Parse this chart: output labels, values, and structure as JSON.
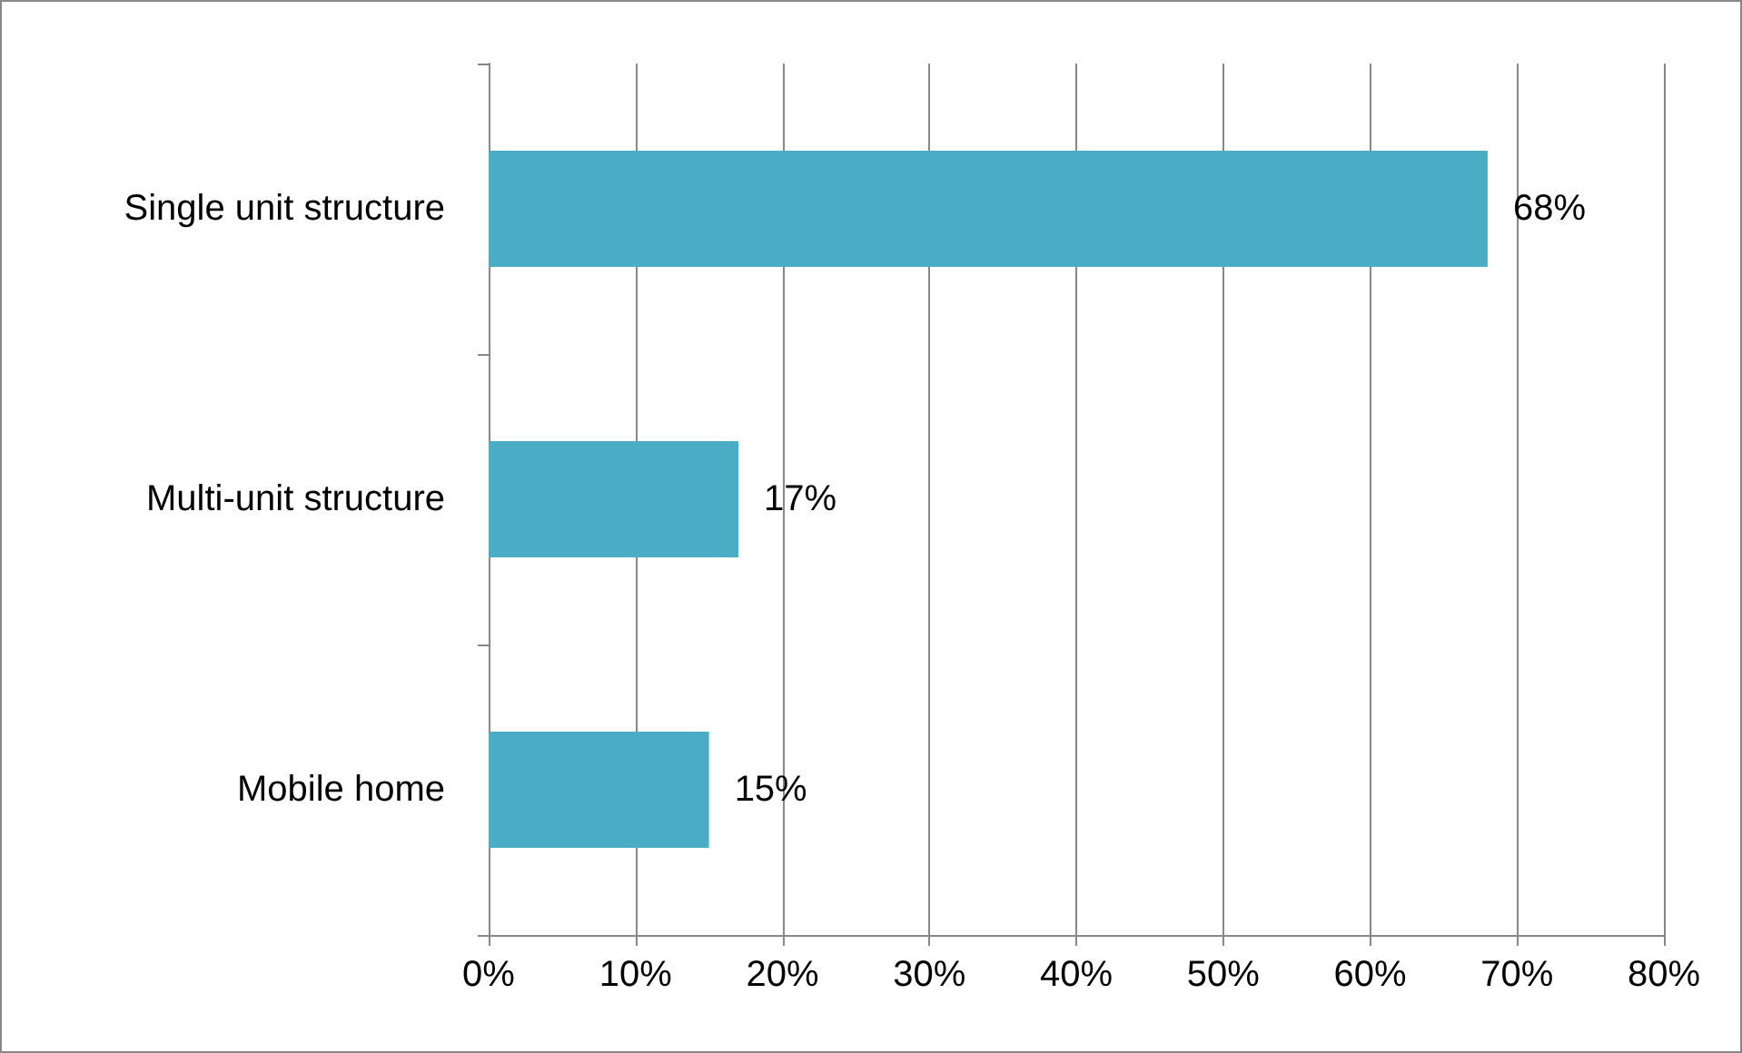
{
  "chart_data": {
    "type": "bar",
    "orientation": "horizontal",
    "categories": [
      "Single unit structure",
      "Multi-unit structure",
      "Mobile home"
    ],
    "values": [
      68,
      17,
      15
    ],
    "color": "#4bacc6",
    "value_labels": [
      "68%",
      "17%",
      "15%"
    ],
    "xlim": [
      0,
      80
    ],
    "xticks": [
      {
        "value": 0,
        "label": "0%"
      },
      {
        "value": 10,
        "label": "10%"
      },
      {
        "value": 20,
        "label": "20%"
      },
      {
        "value": 30,
        "label": "30%"
      },
      {
        "value": 40,
        "label": "40%"
      },
      {
        "value": 50,
        "label": "50%"
      },
      {
        "value": 60,
        "label": "60%"
      },
      {
        "value": 70,
        "label": "70%"
      },
      {
        "value": 80,
        "label": "80%"
      }
    ],
    "grid": "x"
  }
}
